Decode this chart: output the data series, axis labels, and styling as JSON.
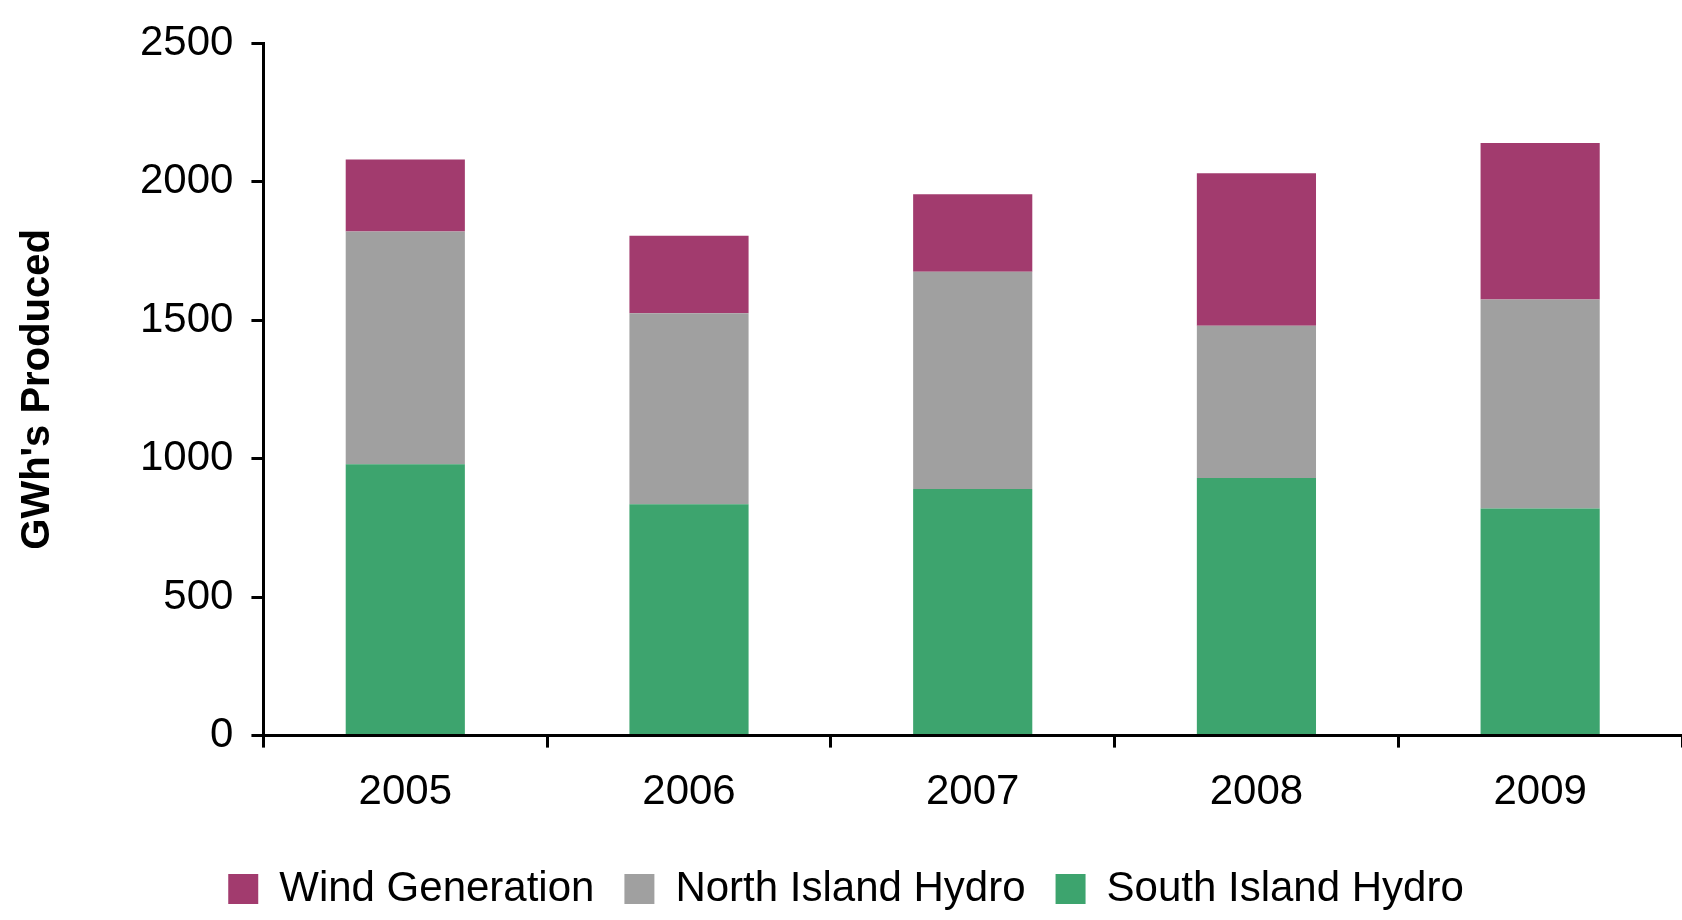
{
  "chart_data": {
    "type": "bar",
    "stacked": true,
    "ylabel": "GWh's Produced",
    "categories": [
      "2005",
      "2006",
      "2007",
      "2008",
      "2009"
    ],
    "series": [
      {
        "name": "South Island Hydro",
        "color": "#3da46e",
        "values": [
          980,
          835,
          890,
          930,
          820
        ]
      },
      {
        "name": "North Island Hydro",
        "color": "#a0a0a0",
        "values": [
          840,
          690,
          785,
          550,
          755
        ]
      },
      {
        "name": "Wind Generation",
        "color": "#a23b6e",
        "values": [
          260,
          280,
          280,
          550,
          565
        ]
      }
    ],
    "ylim": [
      0,
      2500
    ],
    "yticks": [
      0,
      500,
      1000,
      1500,
      2000,
      2500
    ],
    "grid": false,
    "legend": "bottom"
  }
}
